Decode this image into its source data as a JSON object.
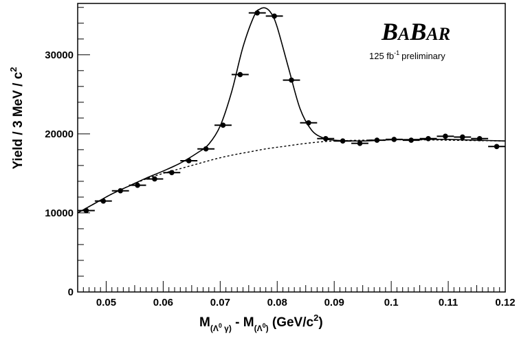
{
  "chart_data": {
    "type": "scatter",
    "title": "",
    "logo": {
      "main": "BABAR",
      "B1": "B",
      "A1": "A",
      "B2": "B",
      "AR": "AR"
    },
    "luminosity": {
      "prefix": "125 fb",
      "sup": "-1",
      "suffix": "preliminary"
    },
    "xlabel": {
      "m1": "M",
      "sub1_open": "(Λ",
      "sub1_sup": "0",
      "sub1_close": " γ)",
      "dash": " - ",
      "m2": "M",
      "sub2_open": "(Λ",
      "sub2_sup": "0",
      "sub2_close": ")",
      "units_open": " (GeV/c",
      "units_sup": "2",
      "units_close": ")"
    },
    "ylabel": {
      "text": "Yield / 3 MeV / c",
      "sup": "2"
    },
    "xlim": [
      0.045,
      0.12
    ],
    "ylim": [
      0,
      36500
    ],
    "x_ticks": [
      {
        "v": 0.05,
        "label": "0.05"
      },
      {
        "v": 0.06,
        "label": "0.06"
      },
      {
        "v": 0.07,
        "label": "0.07"
      },
      {
        "v": 0.08,
        "label": "0.08"
      },
      {
        "v": 0.09,
        "label": "0.09"
      },
      {
        "v": 0.1,
        "label": "0.1"
      },
      {
        "v": 0.11,
        "label": "0.11"
      },
      {
        "v": 0.12,
        "label": "0.12"
      }
    ],
    "y_ticks": [
      {
        "v": 0,
        "label": "0"
      },
      {
        "v": 10000,
        "label": "10000"
      },
      {
        "v": 20000,
        "label": "20000"
      },
      {
        "v": 30000,
        "label": "30000"
      }
    ],
    "bin_width": 0.003,
    "series": [
      {
        "x": [
          0.0465,
          0.0495,
          0.0525,
          0.0555,
          0.0585,
          0.0615,
          0.0645,
          0.0675,
          0.0705,
          0.0735,
          0.0765,
          0.0795,
          0.0825,
          0.0855,
          0.0885,
          0.0915,
          0.0945,
          0.0975,
          0.1005,
          0.1035,
          0.1065,
          0.1095,
          0.1125,
          0.1155,
          0.1185
        ],
        "y": [
          10300,
          11500,
          12800,
          13500,
          14300,
          15100,
          16600,
          18100,
          21100,
          27500,
          35300,
          34900,
          26800,
          21400,
          19400,
          19100,
          18800,
          19200,
          19300,
          19200,
          19400,
          19700,
          19600,
          19400,
          18400
        ]
      }
    ],
    "curves": [
      {
        "name": "fit",
        "x": [
          0.045,
          0.048,
          0.051,
          0.054,
          0.057,
          0.06,
          0.063,
          0.066,
          0.068,
          0.07,
          0.072,
          0.074,
          0.076,
          0.077,
          0.078,
          0.079,
          0.08,
          0.082,
          0.084,
          0.086,
          0.088,
          0.09,
          0.095,
          0.1,
          0.105,
          0.11,
          0.115,
          0.12
        ],
        "y": [
          10000,
          11200,
          12400,
          13400,
          14400,
          15300,
          16300,
          17600,
          18700,
          21000,
          25300,
          31000,
          35000,
          35800,
          35900,
          35200,
          33500,
          28300,
          23200,
          20500,
          19500,
          19200,
          19100,
          19250,
          19300,
          19300,
          19200,
          19100
        ]
      },
      {
        "name": "background",
        "x": [
          0.045,
          0.048,
          0.051,
          0.054,
          0.057,
          0.06,
          0.063,
          0.066,
          0.069,
          0.072,
          0.075,
          0.078,
          0.081,
          0.084,
          0.087,
          0.09,
          0.095,
          0.1,
          0.105,
          0.11,
          0.115,
          0.12
        ],
        "y": [
          10000,
          11200,
          12400,
          13400,
          14300,
          15000,
          15600,
          16200,
          16800,
          17300,
          17700,
          18100,
          18400,
          18700,
          18950,
          19100,
          19200,
          19250,
          19250,
          19200,
          19150,
          19100
        ]
      }
    ],
    "grid": false,
    "legend": "none"
  }
}
